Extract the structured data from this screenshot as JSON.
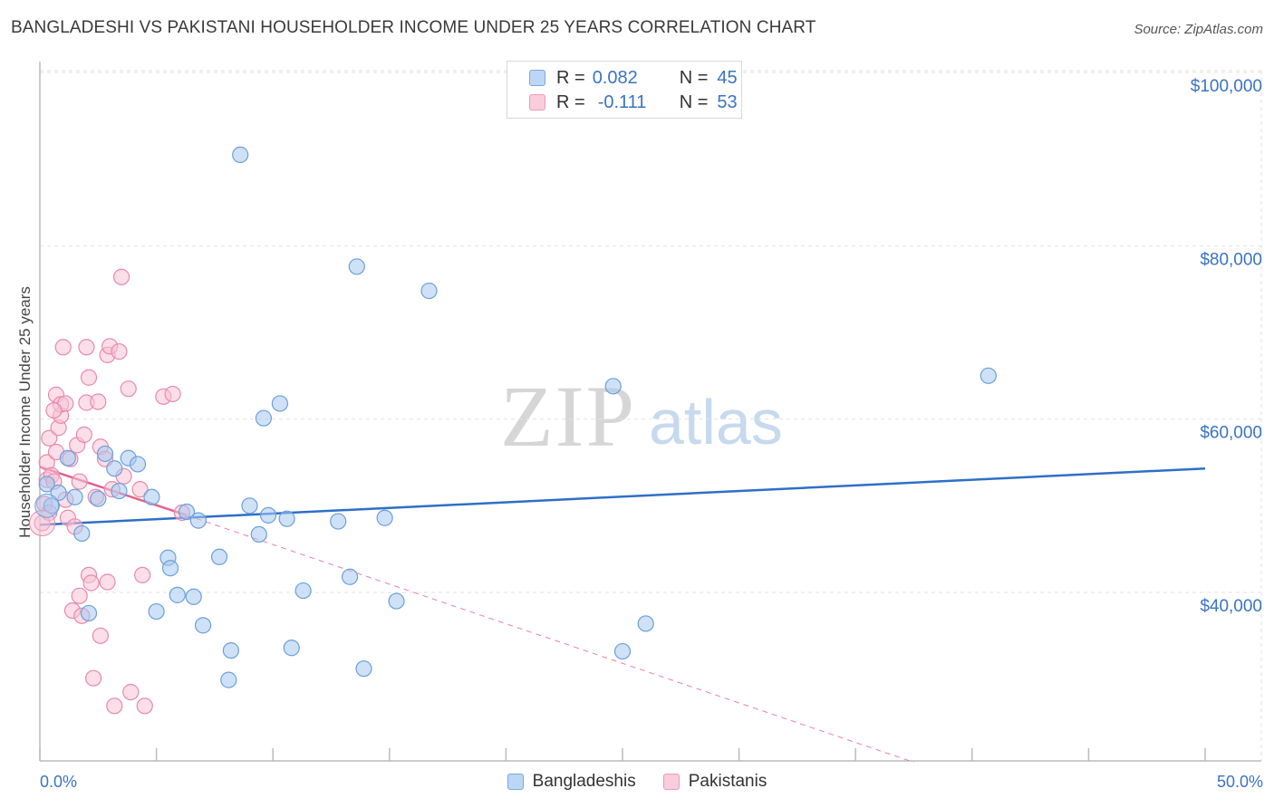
{
  "chart_data": {
    "type": "scatter",
    "title": "BANGLADESHI VS PAKISTANI HOUSEHOLDER INCOME UNDER 25 YEARS CORRELATION CHART",
    "source": "Source: ZipAtlas.com",
    "ylabel": "Householder Income Under 25 years",
    "xlabel": "",
    "xlim": [
      0,
      50
    ],
    "ylim": [
      20000,
      104000
    ],
    "x_tick_labels": {
      "min": "0.0%",
      "max": "50.0%"
    },
    "y_ticks": [
      {
        "value": 100000,
        "label": "$100,000"
      },
      {
        "value": 80000,
        "label": "$80,000"
      },
      {
        "value": 60000,
        "label": "$60,000"
      },
      {
        "value": 40000,
        "label": "$40,000"
      }
    ],
    "grid": true,
    "watermark": {
      "zip": "ZIP",
      "atlas": "atlas"
    },
    "legend": {
      "rows": [
        {
          "r_label": "R =",
          "r_value": "0.082",
          "n_label": "N =",
          "n_value": "45"
        },
        {
          "r_label": "R =",
          "r_value": "-0.111",
          "n_label": "N =",
          "n_value": "53"
        }
      ]
    },
    "series": [
      {
        "name": "Bangladeshis",
        "color": "#a8c8ef",
        "stroke": "#6c9fdc",
        "trend_color": "#2e6fc8",
        "trend": {
          "x0": 0,
          "y0": 47800,
          "x1": 50,
          "y1": 54300
        },
        "points": [
          [
            0.3,
            52500
          ],
          [
            0.5,
            50000
          ],
          [
            0.8,
            51500
          ],
          [
            1.2,
            55500
          ],
          [
            1.5,
            51000
          ],
          [
            1.8,
            46800
          ],
          [
            2.1,
            37600
          ],
          [
            2.5,
            50800
          ],
          [
            2.8,
            56000
          ],
          [
            3.2,
            54300
          ],
          [
            3.4,
            51700
          ],
          [
            3.8,
            55500
          ],
          [
            4.2,
            54800
          ],
          [
            4.8,
            51000
          ],
          [
            5.0,
            37800
          ],
          [
            5.5,
            44000
          ],
          [
            5.6,
            42800
          ],
          [
            5.9,
            39700
          ],
          [
            6.3,
            49300
          ],
          [
            6.6,
            39500
          ],
          [
            6.8,
            48300
          ],
          [
            7.0,
            36200
          ],
          [
            7.7,
            44100
          ],
          [
            8.1,
            29900
          ],
          [
            8.2,
            33300
          ],
          [
            8.6,
            90500
          ],
          [
            9.0,
            50000
          ],
          [
            9.4,
            46700
          ],
          [
            9.6,
            60100
          ],
          [
            9.8,
            48900
          ],
          [
            10.3,
            61800
          ],
          [
            10.6,
            48500
          ],
          [
            10.8,
            33600
          ],
          [
            11.3,
            40200
          ],
          [
            12.8,
            48200
          ],
          [
            13.3,
            41800
          ],
          [
            13.6,
            77600
          ],
          [
            13.9,
            31200
          ],
          [
            14.8,
            48600
          ],
          [
            15.3,
            39000
          ],
          [
            16.7,
            74800
          ],
          [
            24.6,
            63800
          ],
          [
            25.0,
            33200
          ],
          [
            26.0,
            36400
          ],
          [
            40.7,
            65000
          ]
        ]
      },
      {
        "name": "Pakistanis",
        "color": "#f7c3d3",
        "stroke": "#e88aaa",
        "trend_color": "#e3628f",
        "trend": {
          "x0": 0,
          "y0": 54500,
          "x1": 6.3,
          "y1": 48900
        },
        "trend_ext": {
          "x0": 6.3,
          "y0": 48900,
          "x1": 37.5,
          "y1": 20400
        },
        "points": [
          [
            0.1,
            48000
          ],
          [
            0.2,
            50200
          ],
          [
            0.3,
            55000
          ],
          [
            0.3,
            53000
          ],
          [
            0.4,
            57800
          ],
          [
            0.4,
            49200
          ],
          [
            0.5,
            53500
          ],
          [
            0.6,
            52800
          ],
          [
            0.7,
            62800
          ],
          [
            0.7,
            56200
          ],
          [
            0.8,
            59000
          ],
          [
            0.9,
            60400
          ],
          [
            0.9,
            61700
          ],
          [
            1.0,
            68300
          ],
          [
            1.1,
            61800
          ],
          [
            1.1,
            50700
          ],
          [
            1.2,
            48600
          ],
          [
            1.3,
            55400
          ],
          [
            1.4,
            37900
          ],
          [
            1.5,
            47600
          ],
          [
            1.6,
            57000
          ],
          [
            1.7,
            52800
          ],
          [
            1.7,
            39600
          ],
          [
            1.8,
            37300
          ],
          [
            1.9,
            58200
          ],
          [
            2.0,
            61900
          ],
          [
            2.0,
            68300
          ],
          [
            2.1,
            64800
          ],
          [
            2.1,
            42000
          ],
          [
            2.2,
            41100
          ],
          [
            2.3,
            30100
          ],
          [
            2.4,
            51000
          ],
          [
            2.5,
            62000
          ],
          [
            2.6,
            35000
          ],
          [
            2.6,
            56800
          ],
          [
            2.8,
            55400
          ],
          [
            2.9,
            41200
          ],
          [
            2.9,
            67400
          ],
          [
            3.0,
            68400
          ],
          [
            3.1,
            51900
          ],
          [
            3.2,
            26900
          ],
          [
            3.4,
            67800
          ],
          [
            3.5,
            76400
          ],
          [
            3.6,
            53400
          ],
          [
            3.8,
            63500
          ],
          [
            3.9,
            28500
          ],
          [
            4.3,
            51900
          ],
          [
            4.4,
            42000
          ],
          [
            4.5,
            26900
          ],
          [
            5.3,
            62600
          ],
          [
            5.7,
            62900
          ],
          [
            6.1,
            49200
          ],
          [
            0.6,
            61000
          ]
        ]
      }
    ]
  }
}
